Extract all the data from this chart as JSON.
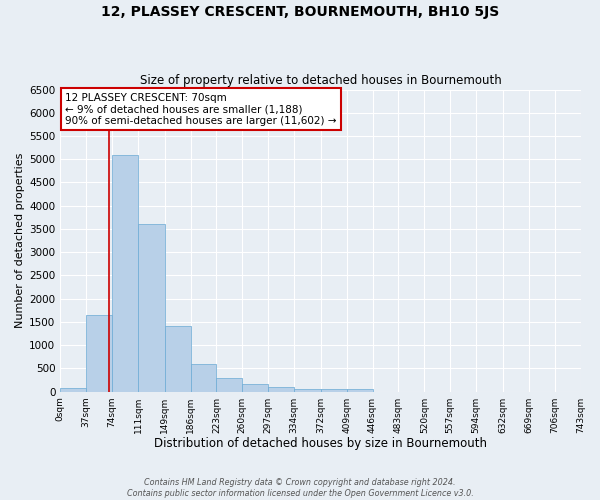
{
  "title": "12, PLASSEY CRESCENT, BOURNEMOUTH, BH10 5JS",
  "subtitle": "Size of property relative to detached houses in Bournemouth",
  "xlabel": "Distribution of detached houses by size in Bournemouth",
  "ylabel": "Number of detached properties",
  "bar_values": [
    75,
    1650,
    5100,
    3600,
    1420,
    590,
    300,
    155,
    90,
    60,
    50,
    50,
    0,
    0,
    0,
    0,
    0,
    0,
    0,
    0
  ],
  "bin_edges": [
    0,
    37,
    74,
    111,
    149,
    186,
    223,
    260,
    297,
    334,
    372,
    409,
    446,
    483,
    520,
    557,
    594,
    632,
    669,
    706,
    743
  ],
  "tick_labels": [
    "0sqm",
    "37sqm",
    "74sqm",
    "111sqm",
    "149sqm",
    "186sqm",
    "223sqm",
    "260sqm",
    "297sqm",
    "334sqm",
    "372sqm",
    "409sqm",
    "446sqm",
    "483sqm",
    "520sqm",
    "557sqm",
    "594sqm",
    "632sqm",
    "669sqm",
    "706sqm",
    "743sqm"
  ],
  "bar_color": "#b8d0e8",
  "bar_edge_color": "#6aaad4",
  "property_line_x": 70,
  "property_line_color": "#cc0000",
  "annotation_line1": "12 PLASSEY CRESCENT: 70sqm",
  "annotation_line2": "← 9% of detached houses are smaller (1,188)",
  "annotation_line3": "90% of semi-detached houses are larger (11,602) →",
  "annotation_box_color": "#cc0000",
  "ylim": [
    0,
    6500
  ],
  "yticks": [
    0,
    500,
    1000,
    1500,
    2000,
    2500,
    3000,
    3500,
    4000,
    4500,
    5000,
    5500,
    6000,
    6500
  ],
  "background_color": "#e8eef4",
  "grid_color": "#ffffff",
  "footer_line1": "Contains HM Land Registry data © Crown copyright and database right 2024.",
  "footer_line2": "Contains public sector information licensed under the Open Government Licence v3.0."
}
